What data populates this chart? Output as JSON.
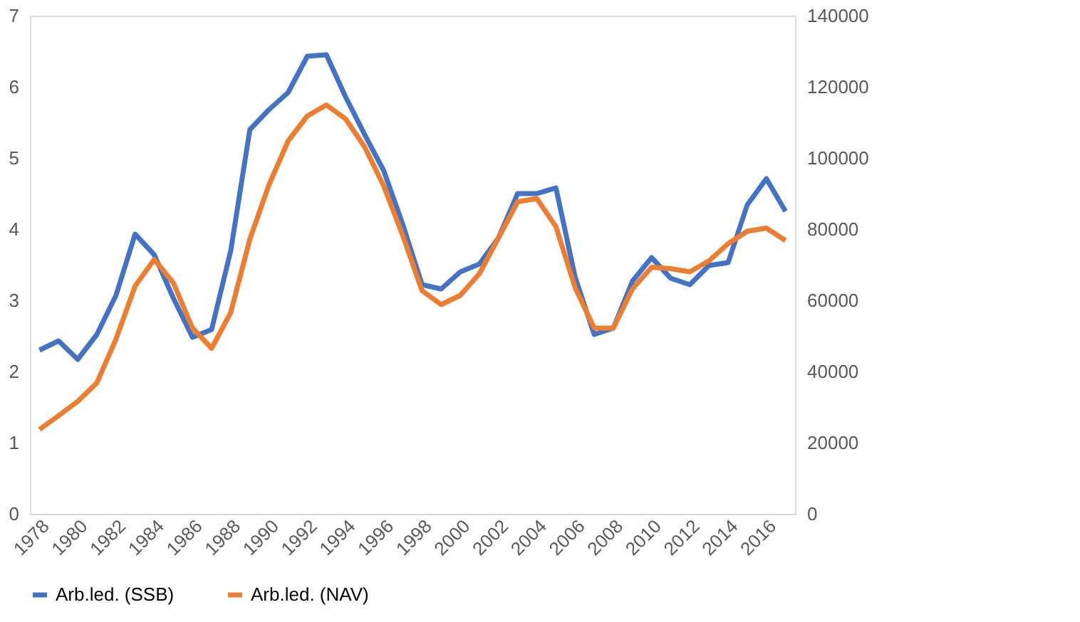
{
  "chart_data": {
    "type": "line",
    "categories": [
      "1978",
      null,
      "1980",
      null,
      "1982",
      null,
      "1984",
      null,
      "1986",
      null,
      "1988",
      null,
      "1990",
      null,
      "1992",
      null,
      "1994",
      null,
      "1996",
      null,
      "1998",
      null,
      "2000",
      null,
      "2002",
      null,
      "2004",
      null,
      "2006",
      null,
      "2008",
      null,
      "2010",
      null,
      "2012",
      null,
      "2014",
      null,
      "2016",
      null
    ],
    "series": [
      {
        "name": "Arb.led. (SSB)",
        "color": "#4472c4",
        "values": [
          2.3,
          2.43,
          2.17,
          2.52,
          3.07,
          3.93,
          3.64,
          3.03,
          2.48,
          2.59,
          3.7,
          5.4,
          5.68,
          5.92,
          6.43,
          6.45,
          5.86,
          5.33,
          4.82,
          4.06,
          3.22,
          3.16,
          3.4,
          3.51,
          3.88,
          4.5,
          4.5,
          4.58,
          3.33,
          2.52,
          2.61,
          3.27,
          3.6,
          3.31,
          3.22,
          3.49,
          3.53,
          4.34,
          4.71,
          4.25
        ]
      },
      {
        "name": "Arb.led. (NAV)",
        "color": "#ed7d31",
        "axis": "y2",
        "values": [
          23700,
          27600,
          31600,
          36800,
          49100,
          64000,
          71500,
          64900,
          52200,
          46500,
          56600,
          77200,
          92500,
          104800,
          111800,
          114900,
          111000,
          103100,
          92100,
          78100,
          62700,
          58800,
          61400,
          67500,
          77600,
          87700,
          88600,
          80700,
          63600,
          52200,
          52200,
          63200,
          69300,
          68900,
          68000,
          71100,
          75900,
          79400,
          80300,
          76800
        ]
      }
    ],
    "ylim": [
      0,
      7
    ],
    "yticks": [
      0,
      1,
      2,
      3,
      4,
      5,
      6,
      7
    ],
    "y2lim": [
      0,
      140000
    ],
    "y2ticks": [
      0,
      20000,
      40000,
      60000,
      80000,
      100000,
      120000,
      140000
    ],
    "grid": false,
    "legend": "bottom",
    "marker": "none",
    "line_style": "solid"
  }
}
